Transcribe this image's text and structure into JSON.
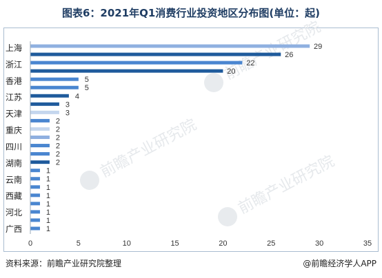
{
  "title": "图表6：2021年Q1消费行业投资地区分布图(单位：起)",
  "footer": {
    "source": "资料来源：前瞻产业研究院整理",
    "brand": "@前瞻经济学人APP"
  },
  "watermark": "前瞻产业研究院",
  "colors": {
    "light": "#8fb0e0",
    "medium": "#4a86d0",
    "dark": "#1f5b9c",
    "pale": "#c4d6ee"
  },
  "chart_data": {
    "type": "bar",
    "orientation": "horizontal",
    "title": "图表6：2021年Q1消费行业投资地区分布图(单位：起)",
    "xlim": [
      0,
      35
    ],
    "xticks": [
      0,
      5,
      10,
      15,
      20,
      25,
      30,
      35
    ],
    "grid": false,
    "category_labels": [
      "上海",
      "浙江",
      "香港",
      "江苏",
      "天津",
      "重庆",
      "四川",
      "湖南",
      "云南",
      "西藏",
      "河北",
      "广西"
    ],
    "bars": [
      {
        "value": 29,
        "color": "light"
      },
      {
        "value": 26,
        "color": "dark"
      },
      {
        "value": 22,
        "color": "medium"
      },
      {
        "value": 20,
        "color": "dark"
      },
      {
        "value": 5,
        "color": "medium"
      },
      {
        "value": 5,
        "color": "medium"
      },
      {
        "value": 4,
        "color": "dark"
      },
      {
        "value": 3,
        "color": "dark"
      },
      {
        "value": 3,
        "color": "pale"
      },
      {
        "value": 2,
        "color": "medium"
      },
      {
        "value": 2,
        "color": "pale"
      },
      {
        "value": 2,
        "color": "light"
      },
      {
        "value": 2,
        "color": "medium"
      },
      {
        "value": 2,
        "color": "medium"
      },
      {
        "value": 2,
        "color": "dark"
      },
      {
        "value": 1,
        "color": "medium"
      },
      {
        "value": 1,
        "color": "medium"
      },
      {
        "value": 1,
        "color": "medium"
      },
      {
        "value": 1,
        "color": "medium"
      },
      {
        "value": 1,
        "color": "medium"
      },
      {
        "value": 1,
        "color": "medium"
      },
      {
        "value": 1,
        "color": "medium"
      },
      {
        "value": 1,
        "color": "medium"
      }
    ]
  }
}
